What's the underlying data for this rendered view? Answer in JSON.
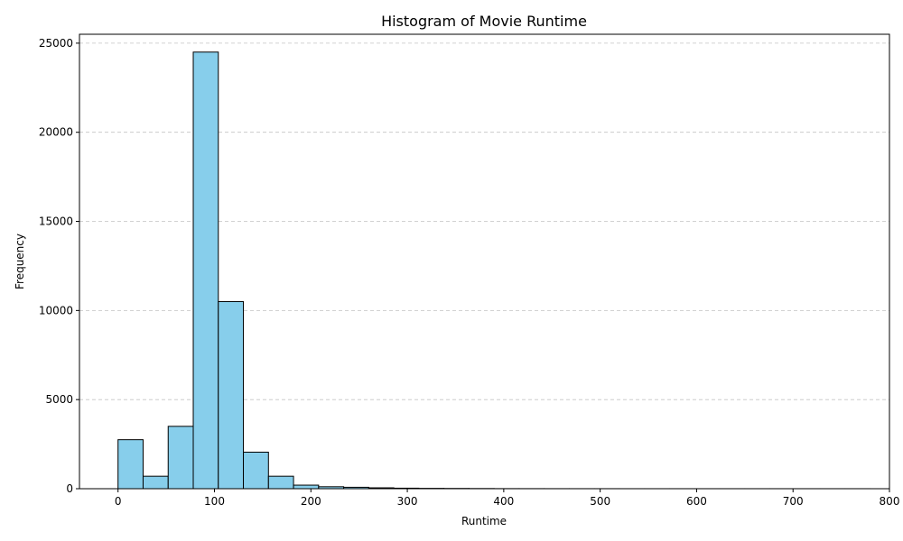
{
  "chart_data": {
    "type": "bar",
    "title": "Histogram of Movie Runtime",
    "xlabel": "Runtime",
    "ylabel": "Frequency",
    "xlim": [
      -40,
      800
    ],
    "ylim": [
      0,
      25500
    ],
    "xticks": [
      0,
      100,
      200,
      300,
      400,
      500,
      600,
      700,
      800
    ],
    "yticks": [
      0,
      5000,
      10000,
      15000,
      20000,
      25000
    ],
    "bin_edges": [
      0,
      26,
      52,
      78,
      104,
      130,
      156,
      182,
      208,
      234,
      260,
      286,
      312,
      338,
      364,
      390,
      416,
      442,
      468,
      494,
      520,
      546,
      572,
      598,
      624,
      650,
      676,
      702,
      728,
      754,
      780
    ],
    "values": [
      2750,
      700,
      3500,
      24500,
      10500,
      2050,
      700,
      200,
      110,
      80,
      50,
      30,
      20,
      15,
      10,
      5,
      4,
      3,
      2,
      2,
      1,
      1,
      1,
      1,
      1,
      1,
      1,
      1,
      1,
      1
    ],
    "grid": "y",
    "bar_color": "#87ceeb",
    "edge_color": "#000000"
  }
}
